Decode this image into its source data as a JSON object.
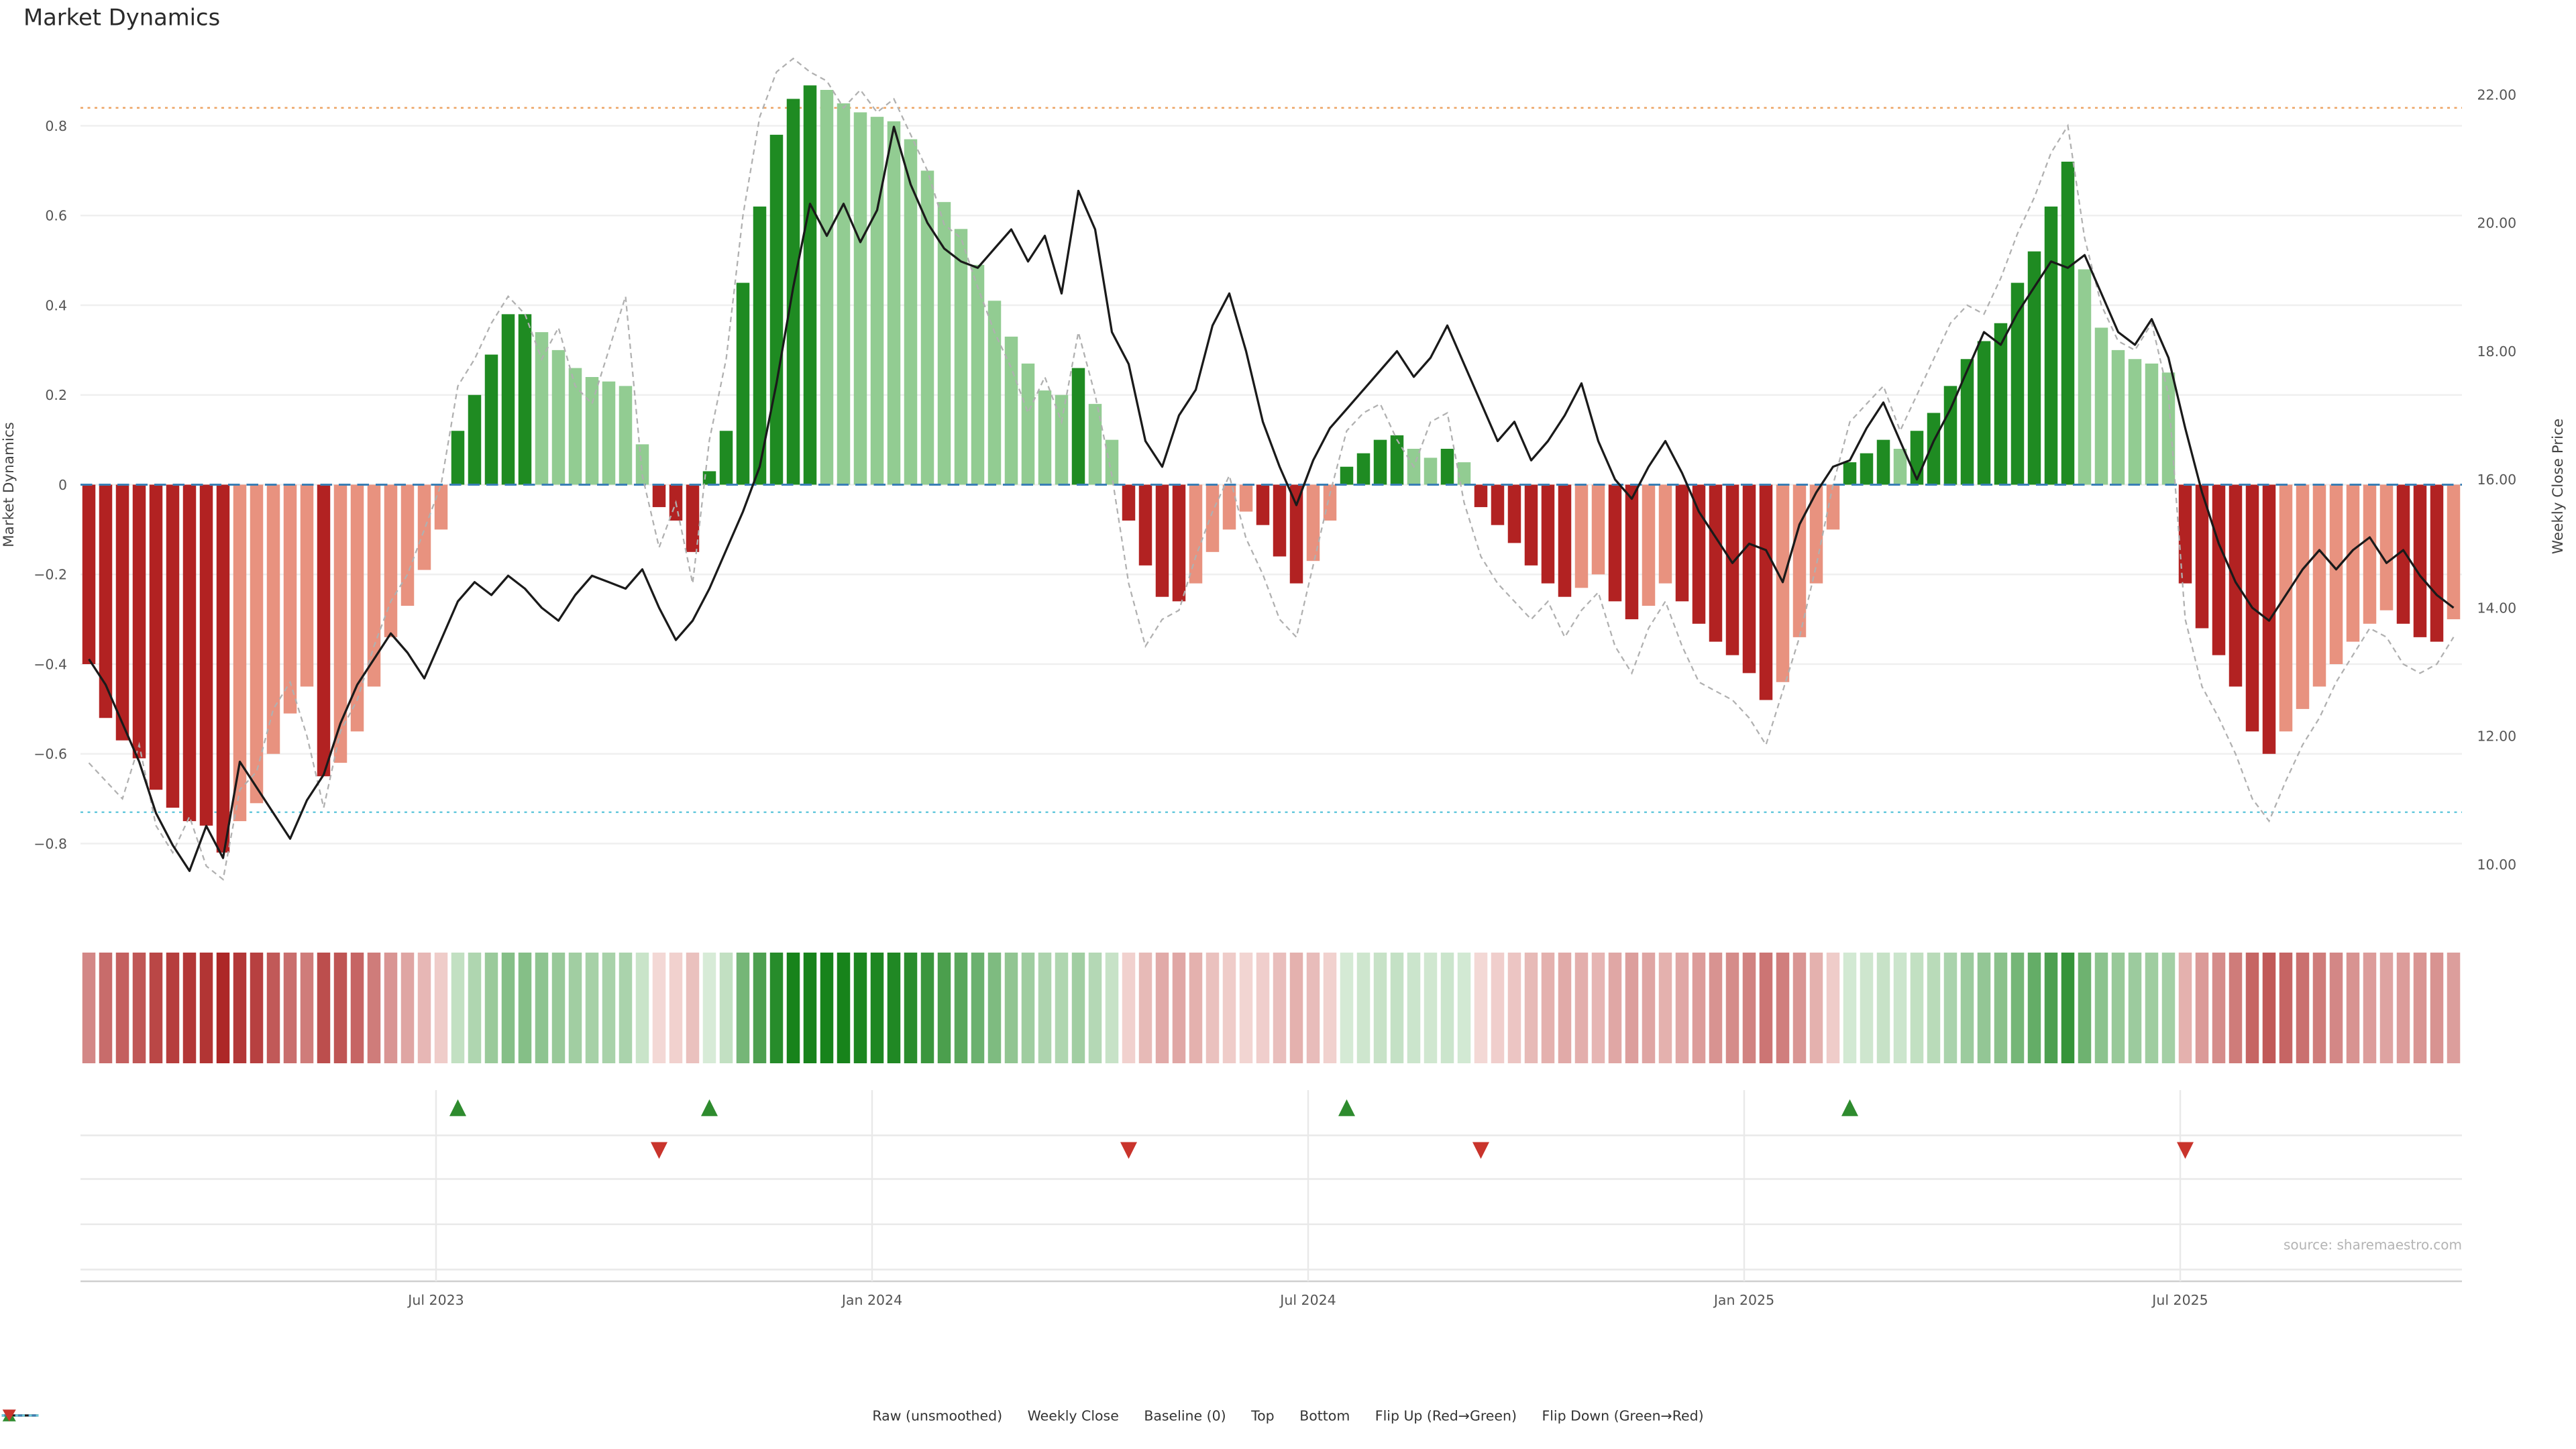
{
  "title": "Market Dynamics",
  "source": "source: sharemaestro.com",
  "axes": {
    "left_label": "Market Dynamics",
    "right_label": "Weekly Close Price",
    "left_ticks": [
      {
        "v": 0.8,
        "label": "0.8"
      },
      {
        "v": 0.6,
        "label": "0.6"
      },
      {
        "v": 0.4,
        "label": "0.4"
      },
      {
        "v": 0.2,
        "label": "0.2"
      },
      {
        "v": 0.0,
        "label": "0"
      },
      {
        "v": -0.2,
        "label": "−0.2"
      },
      {
        "v": -0.4,
        "label": "−0.4"
      },
      {
        "v": -0.6,
        "label": "−0.6"
      },
      {
        "v": -0.8,
        "label": "−0.8"
      }
    ],
    "right_ticks": [
      {
        "v": 22,
        "label": "22.00"
      },
      {
        "v": 20,
        "label": "20.00"
      },
      {
        "v": 18,
        "label": "18.00"
      },
      {
        "v": 16,
        "label": "16.00"
      },
      {
        "v": 14,
        "label": "14.00"
      },
      {
        "v": 12,
        "label": "12.00"
      },
      {
        "v": 10,
        "label": "10.00"
      }
    ],
    "x_ticks": [
      {
        "pos": 20.7,
        "label": "Jul 2023"
      },
      {
        "pos": 46.7,
        "label": "Jan 2024"
      },
      {
        "pos": 72.7,
        "label": "Jul 2024"
      },
      {
        "pos": 98.7,
        "label": "Jan 2025"
      },
      {
        "pos": 124.7,
        "label": "Jul 2025"
      }
    ]
  },
  "chart_data": {
    "type": "bar",
    "subtype": "bar+line combo with heatmap strip and flip markers",
    "title": "Market Dynamics",
    "x_unit": "weeks (Feb 2023 – Oct 2025)",
    "n_points": 142,
    "left_axis_range": [
      -0.95,
      0.97
    ],
    "right_axis_range": [
      9.55,
      22.45
    ],
    "x_tick_labels": [
      "Jul 2023",
      "Jan 2024",
      "Jul 2024",
      "Jan 2025",
      "Jul 2025"
    ],
    "bars": {
      "name": "Market Dynamics (smoothed)",
      "axis": "left",
      "values": [
        -0.4,
        -0.52,
        -0.57,
        -0.61,
        -0.68,
        -0.72,
        -0.75,
        -0.76,
        -0.82,
        -0.75,
        -0.71,
        -0.6,
        -0.51,
        -0.45,
        -0.65,
        -0.62,
        -0.55,
        -0.45,
        -0.34,
        -0.27,
        -0.19,
        -0.1,
        0.12,
        0.2,
        0.29,
        0.38,
        0.38,
        0.34,
        0.3,
        0.26,
        0.24,
        0.23,
        0.22,
        0.09,
        -0.05,
        -0.08,
        -0.15,
        0.03,
        0.12,
        0.45,
        0.62,
        0.78,
        0.86,
        0.89,
        0.88,
        0.85,
        0.83,
        0.82,
        0.81,
        0.77,
        0.7,
        0.63,
        0.57,
        0.49,
        0.41,
        0.33,
        0.27,
        0.21,
        0.2,
        0.26,
        0.18,
        0.1,
        -0.08,
        -0.18,
        -0.25,
        -0.26,
        -0.22,
        -0.15,
        -0.1,
        -0.06,
        -0.09,
        -0.16,
        -0.22,
        -0.17,
        -0.08,
        0.04,
        0.07,
        0.1,
        0.11,
        0.08,
        0.06,
        0.08,
        0.05,
        -0.05,
        -0.09,
        -0.13,
        -0.18,
        -0.22,
        -0.25,
        -0.23,
        -0.2,
        -0.26,
        -0.3,
        -0.27,
        -0.22,
        -0.26,
        -0.31,
        -0.35,
        -0.38,
        -0.42,
        -0.48,
        -0.44,
        -0.34,
        -0.22,
        -0.1,
        0.05,
        0.07,
        0.1,
        0.08,
        0.12,
        0.16,
        0.22,
        0.28,
        0.32,
        0.36,
        0.45,
        0.52,
        0.62,
        0.72,
        0.48,
        0.35,
        0.3,
        0.28,
        0.27,
        0.25,
        -0.22,
        -0.32,
        -0.38,
        -0.45,
        -0.55,
        -0.6,
        -0.55,
        -0.5,
        -0.45,
        -0.4,
        -0.35,
        -0.31,
        -0.28,
        -0.31,
        -0.34,
        -0.35,
        -0.3
      ]
    },
    "raw_line": {
      "name": "Raw (unsmoothed)",
      "axis": "left",
      "values": [
        -0.62,
        -0.66,
        -0.7,
        -0.58,
        -0.76,
        -0.82,
        -0.74,
        -0.85,
        -0.88,
        -0.68,
        -0.64,
        -0.5,
        -0.44,
        -0.56,
        -0.72,
        -0.55,
        -0.48,
        -0.36,
        -0.26,
        -0.2,
        -0.1,
        0.0,
        0.22,
        0.28,
        0.36,
        0.42,
        0.38,
        0.28,
        0.35,
        0.22,
        0.18,
        0.3,
        0.42,
        0.02,
        -0.14,
        -0.04,
        -0.22,
        0.1,
        0.28,
        0.6,
        0.82,
        0.92,
        0.95,
        0.92,
        0.9,
        0.84,
        0.88,
        0.83,
        0.86,
        0.78,
        0.7,
        0.58,
        0.55,
        0.44,
        0.34,
        0.26,
        0.16,
        0.24,
        0.14,
        0.34,
        0.2,
        0.02,
        -0.22,
        -0.36,
        -0.3,
        -0.28,
        -0.16,
        -0.06,
        0.02,
        -0.12,
        -0.2,
        -0.3,
        -0.34,
        -0.18,
        -0.02,
        0.12,
        0.16,
        0.18,
        0.1,
        0.04,
        0.14,
        0.16,
        -0.04,
        -0.16,
        -0.22,
        -0.26,
        -0.3,
        -0.26,
        -0.34,
        -0.28,
        -0.24,
        -0.36,
        -0.42,
        -0.32,
        -0.26,
        -0.36,
        -0.44,
        -0.46,
        -0.48,
        -0.52,
        -0.58,
        -0.46,
        -0.34,
        -0.18,
        0.0,
        0.14,
        0.18,
        0.22,
        0.12,
        0.2,
        0.28,
        0.36,
        0.4,
        0.38,
        0.46,
        0.56,
        0.64,
        0.74,
        0.8,
        0.55,
        0.4,
        0.32,
        0.3,
        0.36,
        0.2,
        -0.3,
        -0.45,
        -0.52,
        -0.6,
        -0.7,
        -0.75,
        -0.66,
        -0.58,
        -0.52,
        -0.44,
        -0.38,
        -0.32,
        -0.34,
        -0.4,
        -0.42,
        -0.4,
        -0.34
      ]
    },
    "price_line": {
      "name": "Weekly Close",
      "axis": "right",
      "values": [
        13.2,
        12.8,
        12.2,
        11.6,
        10.8,
        10.3,
        9.9,
        10.6,
        10.1,
        11.6,
        11.2,
        10.8,
        10.4,
        11.0,
        11.4,
        12.2,
        12.8,
        13.2,
        13.6,
        13.3,
        12.9,
        13.5,
        14.1,
        14.4,
        14.2,
        14.5,
        14.3,
        14.0,
        13.8,
        14.2,
        14.5,
        14.4,
        14.3,
        14.6,
        14.0,
        13.5,
        13.8,
        14.3,
        14.9,
        15.5,
        16.2,
        17.5,
        19.0,
        20.3,
        19.8,
        20.3,
        19.7,
        20.2,
        21.5,
        20.6,
        20.0,
        19.6,
        19.4,
        19.3,
        19.6,
        19.9,
        19.4,
        19.8,
        18.9,
        20.5,
        19.9,
        18.3,
        17.8,
        16.6,
        16.2,
        17.0,
        17.4,
        18.4,
        18.9,
        18.0,
        16.9,
        16.2,
        15.6,
        16.3,
        16.8,
        17.1,
        17.4,
        17.7,
        18.0,
        17.6,
        17.9,
        18.4,
        17.8,
        17.2,
        16.6,
        16.9,
        16.3,
        16.6,
        17.0,
        17.5,
        16.6,
        16.0,
        15.7,
        16.2,
        16.6,
        16.1,
        15.5,
        15.1,
        14.7,
        15.0,
        14.9,
        14.4,
        15.3,
        15.8,
        16.2,
        16.3,
        16.8,
        17.2,
        16.6,
        16.0,
        16.6,
        17.1,
        17.7,
        18.3,
        18.1,
        18.6,
        19.0,
        19.4,
        19.3,
        19.5,
        18.9,
        18.3,
        18.1,
        18.5,
        17.9,
        16.8,
        15.8,
        15.0,
        14.4,
        14.0,
        13.8,
        14.2,
        14.6,
        14.9,
        14.6,
        14.9,
        15.1,
        14.7,
        14.9,
        14.5,
        14.2,
        14.0
      ]
    },
    "reference_lines": {
      "baseline": 0,
      "top": 0.84,
      "bottom": -0.73
    },
    "flip_up_weeks": [
      22,
      37,
      75,
      105
    ],
    "flip_down_weeks": [
      34,
      62,
      83,
      125
    ],
    "legend_position": "bottom center",
    "grid": "horizontal only in main panel, vertical in marker panel"
  },
  "legend": {
    "items": [
      {
        "id": "raw",
        "type": "line-dash",
        "color": "#b0b0b0",
        "label": "Raw (unsmoothed)"
      },
      {
        "id": "weekly-close",
        "type": "line-solid",
        "color": "#1a1a1a",
        "label": "Weekly Close"
      },
      {
        "id": "baseline",
        "type": "line-dashed",
        "color": "#3a7fb5",
        "label": "Baseline (0)"
      },
      {
        "id": "top",
        "type": "line-dot",
        "color": "#eda463",
        "label": "Top"
      },
      {
        "id": "bottom",
        "type": "line-dot",
        "color": "#66c9dc",
        "label": "Bottom"
      },
      {
        "id": "flip-up",
        "type": "tri-up",
        "color": "#2e8b2e",
        "label": "Flip Up (Red→Green)"
      },
      {
        "id": "flip-down",
        "type": "tri-down",
        "color": "#c9342c",
        "label": "Flip Down (Green→Red)"
      }
    ]
  },
  "colors": {
    "red_dark": "#b22222",
    "red_light": "#e8927f",
    "green_dark": "#1f8b22",
    "green_light": "#92cc92",
    "price_line": "#1a1a1a",
    "raw_line": "#b0b0b0",
    "baseline": "#3a7fb5",
    "top_line": "#eda463",
    "bottom_line": "#66c9dc",
    "flip_up": "#2e8b2e",
    "flip_down": "#c9342c",
    "grid": "#efefef",
    "marker_grid": "#e9e9e9",
    "axis_line": "#cfcfcf",
    "axis_text": "#555555",
    "source_text": "#b4b4b4"
  }
}
